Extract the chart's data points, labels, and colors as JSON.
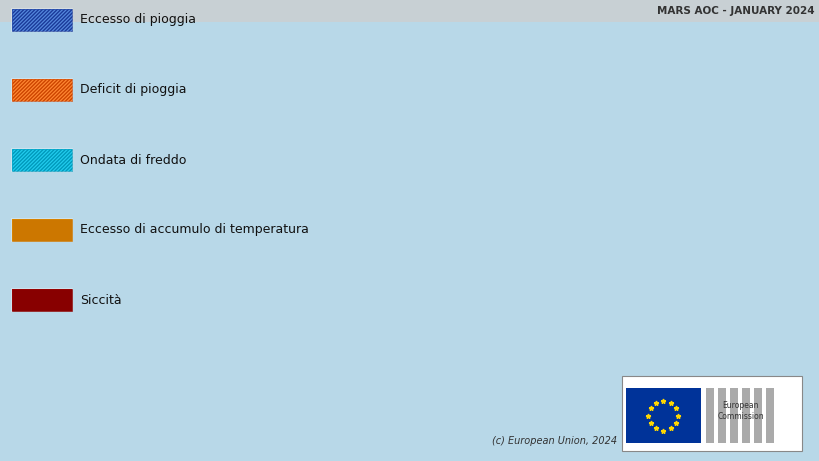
{
  "figsize": [
    8.2,
    4.61
  ],
  "dpi": 100,
  "background_color": "#b8d8e8",
  "land_color": "#d0d0d0",
  "sea_color": "#b8d8e8",
  "header_bg": "#c8d0d4",
  "header_text": "MARS AOC - JANUARY 2024",
  "header_fontsize": 7.5,
  "legend_items": [
    {
      "label": "Eccesso di pioggia",
      "hatch": "///",
      "facecolor": "#5588dd",
      "edgecolor": "#2244aa",
      "hatch_color": "#1a3a99"
    },
    {
      "label": "Deficit di pioggia",
      "hatch": "///",
      "facecolor": "#ff8833",
      "edgecolor": "#cc4400",
      "hatch_color": "#cc4400"
    },
    {
      "label": "Ondata di freddo",
      "hatch": "///",
      "facecolor": "#22ccee",
      "edgecolor": "#0099bb",
      "hatch_color": "#0099bb"
    },
    {
      "label": "Eccesso di accumulo di temperatura",
      "hatch": "oooo",
      "facecolor": "#ffaa00",
      "edgecolor": "#cc7700",
      "hatch_color": "#cc7700"
    },
    {
      "label": "Siccità",
      "hatch": "oooo",
      "facecolor": "#cc1111",
      "edgecolor": "#880000",
      "hatch_color": "#880000"
    }
  ],
  "legend_fontsize": 9,
  "copyright_text": "(c) European Union, 2024",
  "eu_flag_color": "#003399",
  "eu_star_color": "#FFD700"
}
